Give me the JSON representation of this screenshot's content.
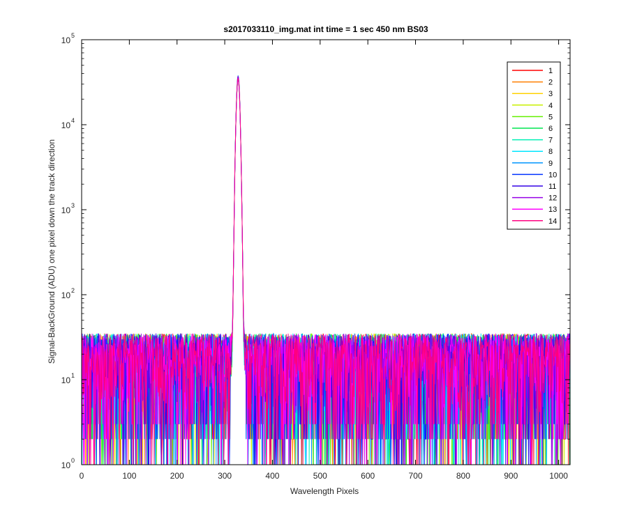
{
  "window": {
    "background": "#ffffff"
  },
  "chart_data": {
    "type": "line",
    "title": "s2017033110_img.mat int time = 1 sec  450 nm BS03",
    "xlabel": "Wavelength Pixels",
    "ylabel": "Signal-BackGround (ADU) one pixel down the track direction",
    "xlim": [
      0,
      1024
    ],
    "ylim": [
      1,
      100000
    ],
    "yscale": "log",
    "grid": false,
    "legend_position": "top-right",
    "x_ticks": [
      0,
      100,
      200,
      300,
      400,
      500,
      600,
      700,
      800,
      900,
      1000
    ],
    "y_ticks": [
      {
        "value": 1,
        "base": "10",
        "exp": "0"
      },
      {
        "value": 10,
        "base": "10",
        "exp": "1"
      },
      {
        "value": 100,
        "base": "10",
        "exp": "2"
      },
      {
        "value": 1000,
        "base": "10",
        "exp": "3"
      },
      {
        "value": 10000,
        "base": "10",
        "exp": "4"
      },
      {
        "value": 100000,
        "base": "10",
        "exp": "5"
      }
    ],
    "x_domain": [
      1,
      1024
    ],
    "peak": {
      "x": 328,
      "values_range": [
        33000,
        38000
      ]
    },
    "noise_floor_typical_range": [
      2,
      35
    ],
    "series": [
      {
        "name": "1",
        "color": "#ff0000"
      },
      {
        "name": "2",
        "color": "#ff7f00"
      },
      {
        "name": "3",
        "color": "#ffd200"
      },
      {
        "name": "4",
        "color": "#c8f000"
      },
      {
        "name": "5",
        "color": "#64f000"
      },
      {
        "name": "6",
        "color": "#00e650"
      },
      {
        "name": "7",
        "color": "#00f0b4"
      },
      {
        "name": "8",
        "color": "#00e6ff"
      },
      {
        "name": "9",
        "color": "#0096ff"
      },
      {
        "name": "10",
        "color": "#0032ff"
      },
      {
        "name": "11",
        "color": "#3200e6"
      },
      {
        "name": "12",
        "color": "#9600e6"
      },
      {
        "name": "13",
        "color": "#ff00ff"
      },
      {
        "name": "14",
        "color": "#ff0080"
      }
    ]
  }
}
